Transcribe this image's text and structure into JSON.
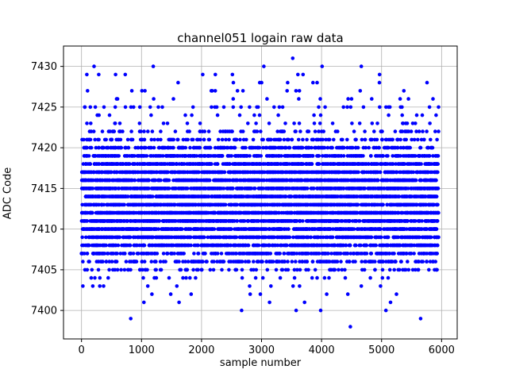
{
  "figure": {
    "title": "channel051 logain raw data",
    "xlabel": "sample number",
    "ylabel": "ADC Code"
  },
  "chart_data": {
    "type": "scatter",
    "title": "channel051 logain raw data",
    "xlabel": "sample number",
    "ylabel": "ADC Code",
    "marker_color": "#0000ff",
    "grid": true,
    "grid_color": "#b0b0b0",
    "axis_color": "#000000",
    "xlim": [
      -300,
      6260
    ],
    "ylim": [
      7396.5,
      7432.5
    ],
    "x_ticks": [
      0,
      1000,
      2000,
      3000,
      4000,
      5000,
      6000
    ],
    "y_ticks": [
      7400,
      7405,
      7410,
      7415,
      7420,
      7425,
      7430
    ],
    "n_samples_approx": 6000,
    "x_range": [
      0,
      5950
    ],
    "levels": [
      {
        "adc": 7400,
        "count": 4
      },
      {
        "adc": 7401,
        "count": 5
      },
      {
        "adc": 7402,
        "count": 8
      },
      {
        "adc": 7403,
        "count": 12
      },
      {
        "adc": 7404,
        "count": 25
      },
      {
        "adc": 7405,
        "count": 90
      },
      {
        "adc": 7406,
        "count": 180
      },
      {
        "adc": 7407,
        "count": 280
      },
      {
        "adc": 7408,
        "count": 380
      },
      {
        "adc": 7409,
        "count": 450
      },
      {
        "adc": 7410,
        "count": 520
      },
      {
        "adc": 7411,
        "count": 560
      },
      {
        "adc": 7412,
        "count": 590
      },
      {
        "adc": 7413,
        "count": 610
      },
      {
        "adc": 7414,
        "count": 610
      },
      {
        "adc": 7415,
        "count": 590
      },
      {
        "adc": 7416,
        "count": 550
      },
      {
        "adc": 7417,
        "count": 500
      },
      {
        "adc": 7418,
        "count": 430
      },
      {
        "adc": 7419,
        "count": 340
      },
      {
        "adc": 7420,
        "count": 240
      },
      {
        "adc": 7421,
        "count": 140
      },
      {
        "adc": 7422,
        "count": 80
      },
      {
        "adc": 7423,
        "count": 30
      },
      {
        "adc": 7424,
        "count": 18
      },
      {
        "adc": 7425,
        "count": 40
      },
      {
        "adc": 7426,
        "count": 14
      },
      {
        "adc": 7427,
        "count": 14
      },
      {
        "adc": 7428,
        "count": 9
      },
      {
        "adc": 7429,
        "count": 10
      },
      {
        "adc": 7430,
        "count": 5
      }
    ],
    "outliers": [
      [
        820,
        7399
      ],
      [
        5650,
        7399
      ],
      [
        4480,
        7398
      ],
      [
        3520,
        7431
      ]
    ]
  }
}
